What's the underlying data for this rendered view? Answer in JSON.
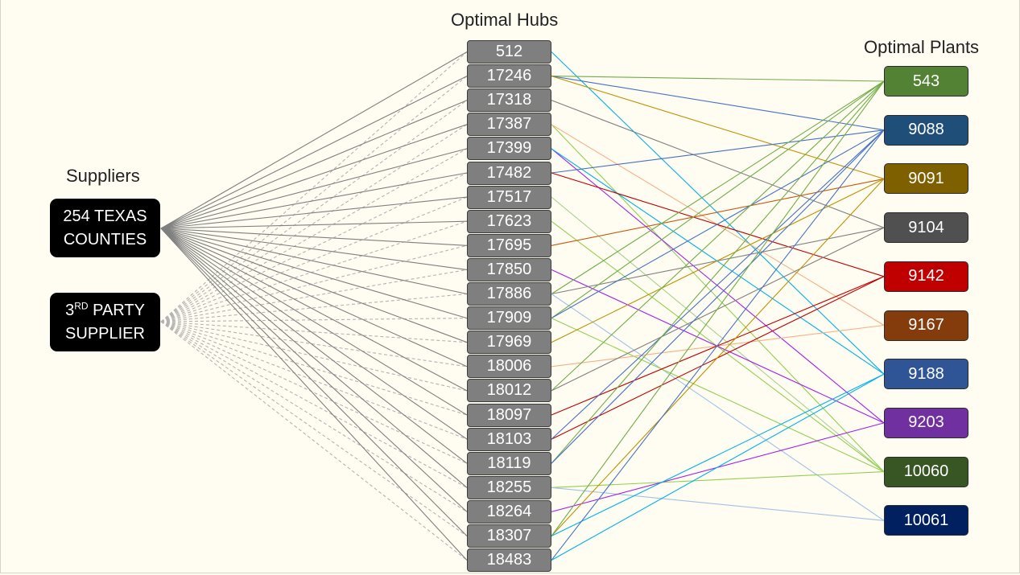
{
  "titles": {
    "hubs": "Optimal Hubs",
    "plants": "Optimal Plants",
    "suppliers": "Suppliers"
  },
  "suppliers": [
    {
      "id": "texas",
      "line1": "254 TEXAS",
      "line2": "COUNTIES"
    },
    {
      "id": "party",
      "line1_main": "3",
      "line1_sup": "RD",
      "line1_rest": " PARTY",
      "line2": "SUPPLIER"
    }
  ],
  "hubs": [
    "512",
    "17246",
    "17318",
    "17387",
    "17399",
    "17482",
    "17517",
    "17623",
    "17695",
    "17850",
    "17886",
    "17909",
    "17969",
    "18006",
    "18012",
    "18097",
    "18103",
    "18119",
    "18255",
    "18264",
    "18307",
    "18483"
  ],
  "plants": [
    {
      "id": "543",
      "color": "#548235"
    },
    {
      "id": "9088",
      "color": "#1f4e79"
    },
    {
      "id": "9091",
      "color": "#7f6000"
    },
    {
      "id": "9104",
      "color": "#505050"
    },
    {
      "id": "9142",
      "color": "#c00000"
    },
    {
      "id": "9167",
      "color": "#843c0c"
    },
    {
      "id": "9188",
      "color": "#2f5597"
    },
    {
      "id": "9203",
      "color": "#7030a0"
    },
    {
      "id": "10060",
      "color": "#375623"
    },
    {
      "id": "10061",
      "color": "#002060"
    }
  ],
  "colors": {
    "supplier_link": "#7f7f7f",
    "third_party_link": "#b3b3b3"
  },
  "flows": [
    {
      "hub": "512",
      "plant": "9188",
      "color": "#00b0f0"
    },
    {
      "hub": "17246",
      "plant": "543",
      "color": "#70ad47"
    },
    {
      "hub": "17246",
      "plant": "9088",
      "color": "#4472c4"
    },
    {
      "hub": "17246",
      "plant": "9091",
      "color": "#bf9000"
    },
    {
      "hub": "17318",
      "plant": "9104",
      "color": "#808080"
    },
    {
      "hub": "17387",
      "plant": "10060",
      "color": "#92d050"
    },
    {
      "hub": "17387",
      "plant": "9167",
      "color": "#f4b183"
    },
    {
      "hub": "17399",
      "plant": "9203",
      "color": "#a020f0"
    },
    {
      "hub": "17399",
      "plant": "9188",
      "color": "#00b0f0"
    },
    {
      "hub": "17482",
      "plant": "9088",
      "color": "#4472c4"
    },
    {
      "hub": "17482",
      "plant": "9142",
      "color": "#c00000"
    },
    {
      "hub": "17517",
      "plant": "10060",
      "color": "#a9d18e"
    },
    {
      "hub": "17623",
      "plant": "10060",
      "color": "#92d050"
    },
    {
      "hub": "17695",
      "plant": "9091",
      "color": "#c55a11"
    },
    {
      "hub": "17850",
      "plant": "9203",
      "color": "#a020f0"
    },
    {
      "hub": "17886",
      "plant": "543",
      "color": "#70ad47"
    },
    {
      "hub": "17886",
      "plant": "9104",
      "color": "#808080"
    },
    {
      "hub": "17886",
      "plant": "10061",
      "color": "#9dc3e6"
    },
    {
      "hub": "17909",
      "plant": "543",
      "color": "#70ad47"
    },
    {
      "hub": "17909",
      "plant": "9088",
      "color": "#4472c4"
    },
    {
      "hub": "17909",
      "plant": "10060",
      "color": "#92d050"
    },
    {
      "hub": "17969",
      "plant": "9091",
      "color": "#bf9000"
    },
    {
      "hub": "18006",
      "plant": "9167",
      "color": "#f4b183"
    },
    {
      "hub": "18012",
      "plant": "543",
      "color": "#70ad47"
    },
    {
      "hub": "18012",
      "plant": "9104",
      "color": "#808080"
    },
    {
      "hub": "18097",
      "plant": "9142",
      "color": "#c00000"
    },
    {
      "hub": "18103",
      "plant": "9142",
      "color": "#c00000"
    },
    {
      "hub": "18103",
      "plant": "9088",
      "color": "#4472c4"
    },
    {
      "hub": "18119",
      "plant": "543",
      "color": "#70ad47"
    },
    {
      "hub": "18119",
      "plant": "9088",
      "color": "#4472c4"
    },
    {
      "hub": "18255",
      "plant": "10060",
      "color": "#92d050"
    },
    {
      "hub": "18255",
      "plant": "10061",
      "color": "#9dc3e6"
    },
    {
      "hub": "18264",
      "plant": "9203",
      "color": "#a020f0"
    },
    {
      "hub": "18307",
      "plant": "9091",
      "color": "#bf9000"
    },
    {
      "hub": "18307",
      "plant": "543",
      "color": "#70ad47"
    },
    {
      "hub": "18307",
      "plant": "9188",
      "color": "#00b0f0"
    },
    {
      "hub": "18483",
      "plant": "9088",
      "color": "#4472c4"
    },
    {
      "hub": "18483",
      "plant": "9188",
      "color": "#00b0f0"
    }
  ]
}
